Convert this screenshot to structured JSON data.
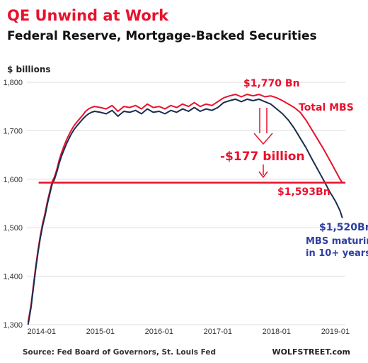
{
  "header": {
    "title": "QE Unwind at Work",
    "subtitle": "Federal Reserve, Mortgage-Backed Securities"
  },
  "footer": {
    "source": "Source: Fed Board of Governors, St. Louis Fed",
    "brand": "WOLFSTREET.com"
  },
  "colors": {
    "title": "#e8112d",
    "total_mbs": "#e8112d",
    "maturing": "#1a2d4e",
    "annotation_blue": "#2e3fa3",
    "grid": "#dddddd"
  },
  "chart_data": {
    "type": "line",
    "ylabel": "$ billions",
    "ylim": [
      1300,
      1800
    ],
    "yticks": [
      1300,
      1400,
      1500,
      1600,
      1700,
      1800
    ],
    "ytick_labels": [
      "1,300",
      "1,400",
      "1,500",
      "1,600",
      "1,700",
      "1,800"
    ],
    "xlim": [
      2013.75,
      2019.17
    ],
    "xticks": [
      2014.0,
      2015.0,
      2016.0,
      2017.0,
      2018.0,
      2019.0
    ],
    "xtick_labels": [
      "2014-01",
      "2015-01",
      "2016-01",
      "2017-01",
      "2018-01",
      "2019-01"
    ],
    "grid": "horizontal",
    "series": [
      {
        "name": "Total MBS",
        "color": "#e8112d",
        "x": [
          2013.77,
          2013.82,
          2013.86,
          2013.9,
          2013.94,
          2013.98,
          2014.02,
          2014.06,
          2014.1,
          2014.14,
          2014.18,
          2014.22,
          2014.26,
          2014.3,
          2014.34,
          2014.38,
          2014.42,
          2014.46,
          2014.5,
          2014.55,
          2014.6,
          2014.65,
          2014.7,
          2014.75,
          2014.8,
          2014.85,
          2014.9,
          2015.0,
          2015.1,
          2015.2,
          2015.3,
          2015.4,
          2015.5,
          2015.6,
          2015.7,
          2015.8,
          2015.9,
          2016.0,
          2016.1,
          2016.2,
          2016.3,
          2016.4,
          2016.5,
          2016.6,
          2016.7,
          2016.8,
          2016.9,
          2017.0,
          2017.1,
          2017.2,
          2017.3,
          2017.4,
          2017.5,
          2017.6,
          2017.7,
          2017.8,
          2017.9,
          2018.0,
          2018.1,
          2018.2,
          2018.3,
          2018.4,
          2018.5,
          2018.6,
          2018.7,
          2018.8,
          2018.9,
          2019.0,
          2019.08,
          2019.12
        ],
        "y": [
          1305,
          1340,
          1380,
          1420,
          1455,
          1485,
          1510,
          1530,
          1555,
          1575,
          1595,
          1605,
          1620,
          1640,
          1655,
          1668,
          1680,
          1690,
          1700,
          1710,
          1718,
          1725,
          1732,
          1740,
          1745,
          1748,
          1750,
          1748,
          1745,
          1752,
          1740,
          1750,
          1748,
          1752,
          1745,
          1755,
          1748,
          1750,
          1745,
          1752,
          1748,
          1755,
          1750,
          1758,
          1750,
          1755,
          1752,
          1760,
          1768,
          1772,
          1775,
          1770,
          1775,
          1772,
          1775,
          1770,
          1772,
          1768,
          1762,
          1755,
          1748,
          1738,
          1722,
          1702,
          1682,
          1662,
          1640,
          1618,
          1600,
          1593
        ]
      },
      {
        "name": "MBS maturing in 10+ years",
        "color": "#1a2d4e",
        "x": [
          2013.77,
          2013.82,
          2013.86,
          2013.9,
          2013.94,
          2013.98,
          2014.02,
          2014.06,
          2014.1,
          2014.14,
          2014.18,
          2014.22,
          2014.26,
          2014.3,
          2014.34,
          2014.38,
          2014.42,
          2014.46,
          2014.5,
          2014.55,
          2014.6,
          2014.65,
          2014.7,
          2014.75,
          2014.8,
          2014.85,
          2014.9,
          2015.0,
          2015.1,
          2015.2,
          2015.3,
          2015.4,
          2015.5,
          2015.6,
          2015.7,
          2015.8,
          2015.9,
          2016.0,
          2016.1,
          2016.2,
          2016.3,
          2016.4,
          2016.5,
          2016.6,
          2016.7,
          2016.8,
          2016.9,
          2017.0,
          2017.1,
          2017.2,
          2017.3,
          2017.4,
          2017.5,
          2017.6,
          2017.7,
          2017.8,
          2017.9,
          2018.0,
          2018.1,
          2018.2,
          2018.3,
          2018.4,
          2018.5,
          2018.6,
          2018.7,
          2018.8,
          2018.9,
          2019.0,
          2019.08,
          2019.12
        ],
        "y": [
          1300,
          1335,
          1375,
          1415,
          1450,
          1480,
          1505,
          1525,
          1550,
          1570,
          1590,
          1600,
          1615,
          1633,
          1648,
          1660,
          1672,
          1682,
          1692,
          1702,
          1710,
          1717,
          1724,
          1730,
          1735,
          1738,
          1740,
          1738,
          1735,
          1742,
          1730,
          1740,
          1738,
          1742,
          1735,
          1745,
          1738,
          1740,
          1735,
          1742,
          1738,
          1745,
          1740,
          1748,
          1740,
          1745,
          1742,
          1748,
          1758,
          1762,
          1765,
          1760,
          1765,
          1762,
          1765,
          1760,
          1755,
          1745,
          1735,
          1722,
          1705,
          1685,
          1665,
          1642,
          1620,
          1598,
          1575,
          1555,
          1535,
          1520
        ]
      }
    ],
    "reference_lines": [
      {
        "y": 1593,
        "color": "#e8112d"
      }
    ],
    "annotations": [
      {
        "text": "$1,770 Bn",
        "color": "#e8112d"
      },
      {
        "text": "Total MBS",
        "color": "#e8112d"
      },
      {
        "text": "-$177 billion",
        "color": "#e8112d"
      },
      {
        "text": "$1,593Bn",
        "color": "#e8112d"
      },
      {
        "text": "$1,520Bn",
        "color": "#2e3fa3"
      },
      {
        "text": "MBS maturing",
        "color": "#2e3fa3"
      },
      {
        "text": "in 10+ years",
        "color": "#2e3fa3"
      }
    ]
  }
}
